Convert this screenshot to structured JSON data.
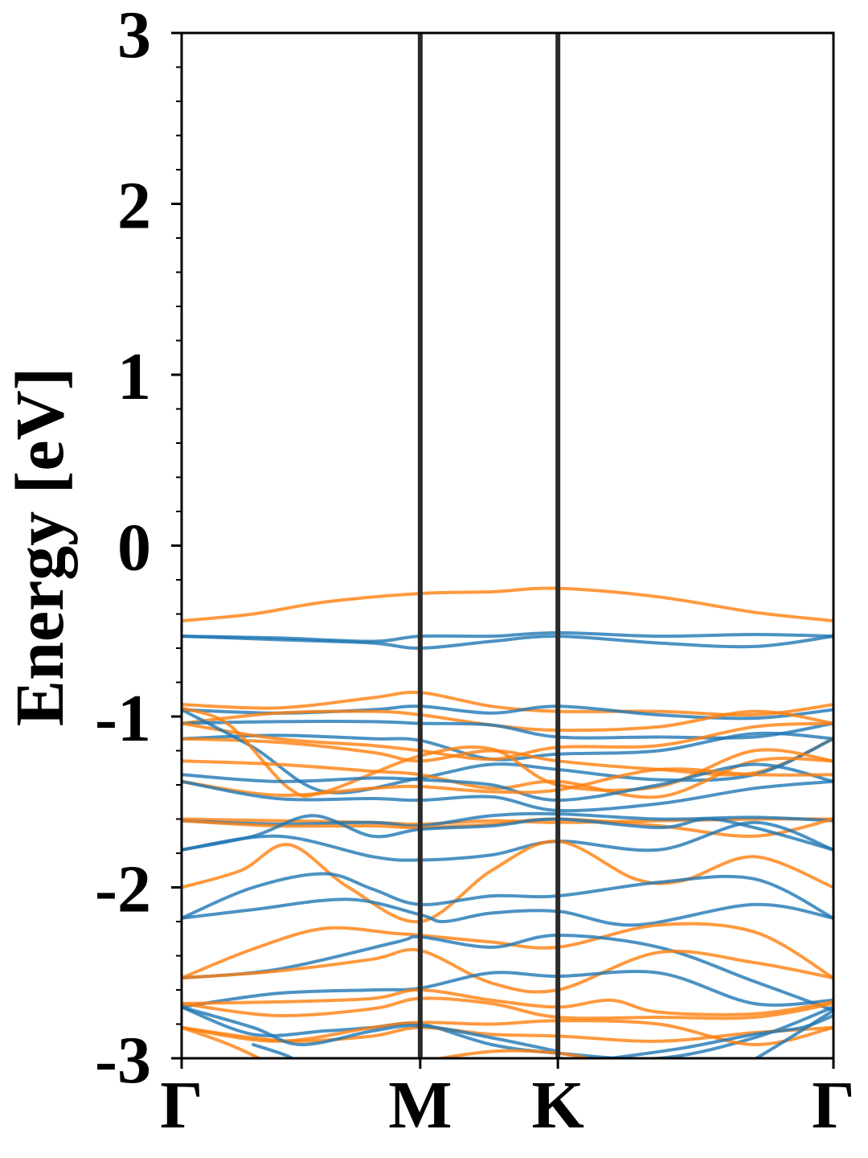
{
  "chart_data": {
    "type": "line",
    "title": "",
    "xlabel": "",
    "ylabel": "Energy [eV]",
    "ylim": [
      -3,
      3
    ],
    "yticks": [
      {
        "value": -3,
        "label": "-3"
      },
      {
        "value": -2,
        "label": "-2"
      },
      {
        "value": -1,
        "label": "-1"
      },
      {
        "value": 0,
        "label": "0"
      },
      {
        "value": 1,
        "label": "1"
      },
      {
        "value": 2,
        "label": "2"
      },
      {
        "value": 3,
        "label": "3"
      }
    ],
    "xlim": [
      0,
      2.732
    ],
    "xticks": [
      {
        "value": 0,
        "label": "Γ"
      },
      {
        "value": 1.0,
        "label": "M"
      },
      {
        "value": 1.577,
        "label": "K"
      },
      {
        "value": 2.732,
        "label": "Γ"
      }
    ],
    "grid": false,
    "legend": "none",
    "colors": {
      "blue": "#1f77b4",
      "orange": "#ff7f0e",
      "vline": "#2b2b2b"
    },
    "series": [
      {
        "color": "orange",
        "x": [
          0,
          0.3,
          0.6,
          1.0,
          1.3,
          1.577,
          2.0,
          2.4,
          2.732
        ],
        "y": [
          -0.44,
          -0.4,
          -0.33,
          -0.28,
          -0.27,
          -0.25,
          -0.3,
          -0.39,
          -0.44
        ]
      },
      {
        "color": "blue",
        "x": [
          0,
          0.4,
          0.8,
          1.0,
          1.3,
          1.577,
          2.0,
          2.4,
          2.732
        ],
        "y": [
          -0.53,
          -0.54,
          -0.56,
          -0.53,
          -0.53,
          -0.51,
          -0.53,
          -0.52,
          -0.53
        ]
      },
      {
        "color": "blue",
        "x": [
          0,
          0.4,
          0.8,
          1.0,
          1.3,
          1.577,
          2.0,
          2.4,
          2.732
        ],
        "y": [
          -0.53,
          -0.55,
          -0.57,
          -0.6,
          -0.56,
          -0.53,
          -0.57,
          -0.59,
          -0.53
        ]
      },
      {
        "color": "orange",
        "x": [
          0,
          0.4,
          0.8,
          1.0,
          1.3,
          1.577,
          2.0,
          2.4,
          2.732
        ],
        "y": [
          -0.93,
          -0.95,
          -0.89,
          -0.86,
          -0.94,
          -0.97,
          -0.97,
          -0.99,
          -0.93
        ]
      },
      {
        "color": "blue",
        "x": [
          0,
          0.4,
          0.8,
          1.0,
          1.3,
          1.577,
          2.0,
          2.4,
          2.732
        ],
        "y": [
          -0.96,
          -0.98,
          -0.96,
          -0.94,
          -0.98,
          -0.94,
          -0.99,
          -1.01,
          -0.96
        ]
      },
      {
        "color": "orange",
        "x": [
          0,
          0.4,
          0.8,
          1.0,
          1.3,
          1.577,
          2.0,
          2.4,
          2.732
        ],
        "y": [
          -1.04,
          -0.98,
          -0.97,
          -0.99,
          -1.05,
          -1.08,
          -1.06,
          -0.97,
          -1.04
        ]
      },
      {
        "color": "blue",
        "x": [
          0,
          0.4,
          0.8,
          1.0,
          1.3,
          1.577,
          2.0,
          2.4,
          2.732
        ],
        "y": [
          -1.04,
          -1.03,
          -1.03,
          -1.04,
          -1.05,
          -1.12,
          -1.12,
          -1.12,
          -1.04
        ]
      },
      {
        "color": "blue",
        "x": [
          0,
          0.4,
          0.8,
          1.0,
          1.3,
          1.577,
          2.0,
          2.4,
          2.732
        ],
        "y": [
          -1.13,
          -1.11,
          -1.13,
          -1.14,
          -1.25,
          -1.22,
          -1.2,
          -1.1,
          -1.13
        ]
      },
      {
        "color": "orange",
        "x": [
          0,
          0.4,
          0.8,
          1.0,
          1.3,
          1.577,
          2.0,
          2.4,
          2.732
        ],
        "y": [
          -1.04,
          -1.13,
          -1.17,
          -1.2,
          -1.25,
          -1.18,
          -1.17,
          -1.06,
          -1.04
        ]
      },
      {
        "color": "orange",
        "x": [
          0,
          0.4,
          0.8,
          1.0,
          1.3,
          1.577,
          2.0,
          2.4,
          2.732
        ],
        "y": [
          -1.13,
          -1.15,
          -1.21,
          -1.26,
          -1.2,
          -1.26,
          -1.31,
          -1.33,
          -1.13
        ]
      },
      {
        "color": "blue",
        "x": [
          0,
          0.3,
          0.6,
          1.0,
          1.3,
          1.577,
          2.0,
          2.4,
          2.732
        ],
        "y": [
          -0.96,
          -1.18,
          -1.44,
          -1.36,
          -1.28,
          -1.31,
          -1.37,
          -1.34,
          -1.13
        ]
      },
      {
        "color": "orange",
        "x": [
          0,
          0.2,
          0.45,
          0.6,
          1.0,
          1.3,
          1.577,
          2.0,
          2.4,
          2.732
        ],
        "y": [
          -0.95,
          -1.05,
          -1.42,
          -1.44,
          -1.23,
          -1.19,
          -1.4,
          -1.41,
          -1.2,
          -1.26
        ]
      },
      {
        "color": "orange",
        "x": [
          0,
          0.4,
          0.8,
          1.0,
          1.3,
          1.577,
          2.0,
          2.4,
          2.732
        ],
        "y": [
          -1.26,
          -1.28,
          -1.32,
          -1.34,
          -1.42,
          -1.38,
          -1.47,
          -1.26,
          -1.26
        ]
      },
      {
        "color": "blue",
        "x": [
          0,
          0.4,
          0.8,
          1.0,
          1.3,
          1.577,
          2.0,
          2.4,
          2.732
        ],
        "y": [
          -1.34,
          -1.38,
          -1.36,
          -1.37,
          -1.4,
          -1.49,
          -1.4,
          -1.28,
          -1.38
        ]
      },
      {
        "color": "orange",
        "x": [
          0,
          0.4,
          0.8,
          1.0,
          1.3,
          1.577,
          2.0,
          2.4,
          2.732
        ],
        "y": [
          -1.38,
          -1.46,
          -1.42,
          -1.41,
          -1.44,
          -1.43,
          -1.31,
          -1.34,
          -1.34
        ]
      },
      {
        "color": "blue",
        "x": [
          0,
          0.4,
          0.8,
          1.0,
          1.3,
          1.577,
          2.0,
          2.4,
          2.732
        ],
        "y": [
          -1.38,
          -1.48,
          -1.48,
          -1.49,
          -1.47,
          -1.55,
          -1.51,
          -1.42,
          -1.38
        ]
      },
      {
        "color": "orange",
        "x": [
          0,
          0.4,
          0.8,
          1.0,
          1.3,
          1.577,
          2.0,
          2.4,
          2.732
        ],
        "y": [
          -1.6,
          -1.61,
          -1.62,
          -1.63,
          -1.61,
          -1.62,
          -1.61,
          -1.6,
          -1.6
        ]
      },
      {
        "color": "blue",
        "x": [
          0,
          0.4,
          0.8,
          1.0,
          1.3,
          1.577,
          2.0,
          2.4,
          2.732
        ],
        "y": [
          -1.61,
          -1.63,
          -1.62,
          -1.64,
          -1.58,
          -1.57,
          -1.6,
          -1.59,
          -1.61
        ]
      },
      {
        "color": "orange",
        "x": [
          0,
          0.4,
          0.8,
          1.0,
          1.3,
          1.577,
          2.0,
          2.4,
          2.732
        ],
        "y": [
          -1.61,
          -1.64,
          -1.64,
          -1.65,
          -1.63,
          -1.6,
          -1.64,
          -1.7,
          -1.6
        ]
      },
      {
        "color": "blue",
        "x": [
          0,
          0.3,
          0.55,
          0.8,
          1.0,
          1.3,
          1.577,
          2.0,
          2.2,
          2.4,
          2.732
        ],
        "y": [
          -1.78,
          -1.7,
          -1.58,
          -1.7,
          -1.66,
          -1.64,
          -1.6,
          -1.65,
          -1.6,
          -1.65,
          -1.78
        ]
      },
      {
        "color": "blue",
        "x": [
          0,
          0.4,
          0.8,
          1.0,
          1.3,
          1.577,
          2.0,
          2.4,
          2.732
        ],
        "y": [
          -1.78,
          -1.7,
          -1.82,
          -1.84,
          -1.81,
          -1.73,
          -1.78,
          -1.62,
          -1.78
        ]
      },
      {
        "color": "orange",
        "x": [
          0,
          0.25,
          0.45,
          0.7,
          1.0,
          1.3,
          1.577,
          1.9,
          2.1,
          2.4,
          2.732
        ],
        "y": [
          -2.0,
          -1.9,
          -1.75,
          -2.0,
          -2.2,
          -1.9,
          -1.73,
          -1.95,
          -1.96,
          -1.82,
          -2.0
        ]
      },
      {
        "color": "blue",
        "x": [
          0,
          0.3,
          0.6,
          0.8,
          1.0,
          1.3,
          1.577,
          2.0,
          2.4,
          2.732
        ],
        "y": [
          -2.18,
          -2.0,
          -1.92,
          -2.01,
          -2.1,
          -2.05,
          -2.05,
          -1.97,
          -1.95,
          -2.18
        ]
      },
      {
        "color": "blue",
        "x": [
          0,
          0.3,
          0.7,
          1.0,
          1.1,
          1.3,
          1.577,
          1.9,
          2.4,
          2.732
        ],
        "y": [
          -2.18,
          -2.13,
          -2.07,
          -2.16,
          -2.2,
          -2.15,
          -2.14,
          -2.22,
          -2.1,
          -2.18
        ]
      },
      {
        "color": "orange",
        "x": [
          0,
          0.3,
          0.6,
          0.9,
          1.0,
          1.3,
          1.577,
          2.0,
          2.4,
          2.732
        ],
        "y": [
          -2.53,
          -2.36,
          -2.24,
          -2.27,
          -2.28,
          -2.32,
          -2.35,
          -2.22,
          -2.26,
          -2.53
        ]
      },
      {
        "color": "blue",
        "x": [
          0,
          0.4,
          0.9,
          1.0,
          1.3,
          1.577,
          2.0,
          2.4,
          2.732
        ],
        "y": [
          -2.53,
          -2.48,
          -2.32,
          -2.29,
          -2.35,
          -2.28,
          -2.35,
          -2.55,
          -2.72
        ]
      },
      {
        "color": "orange",
        "x": [
          0,
          0.4,
          0.8,
          1.0,
          1.3,
          1.577,
          2.0,
          2.4,
          2.732
        ],
        "y": [
          -2.53,
          -2.49,
          -2.42,
          -2.37,
          -2.56,
          -2.6,
          -2.38,
          -2.44,
          -2.53
        ]
      },
      {
        "color": "blue",
        "x": [
          0,
          0.4,
          0.8,
          1.0,
          1.3,
          1.577,
          2.0,
          2.4,
          2.732
        ],
        "y": [
          -2.7,
          -2.62,
          -2.6,
          -2.59,
          -2.5,
          -2.52,
          -2.5,
          -2.68,
          -2.66
        ]
      },
      {
        "color": "orange",
        "x": [
          0,
          0.4,
          0.8,
          1.0,
          1.3,
          1.577,
          1.8,
          2.0,
          2.4,
          2.732
        ],
        "y": [
          -2.68,
          -2.67,
          -2.65,
          -2.6,
          -2.66,
          -2.7,
          -2.66,
          -2.73,
          -2.74,
          -2.67
        ]
      },
      {
        "color": "orange",
        "x": [
          0,
          0.4,
          0.8,
          1.0,
          1.3,
          1.577,
          2.0,
          2.4,
          2.732
        ],
        "y": [
          -2.68,
          -2.75,
          -2.71,
          -2.65,
          -2.68,
          -2.76,
          -2.76,
          -2.76,
          -2.68
        ]
      },
      {
        "color": "blue",
        "x": [
          0,
          0.3,
          0.6,
          0.8,
          1.0,
          1.3,
          1.577,
          2.0,
          2.4,
          2.732
        ],
        "y": [
          -2.7,
          -2.86,
          -2.84,
          -2.82,
          -2.8,
          -2.92,
          -2.97,
          -3.0,
          -2.88,
          -2.7
        ]
      },
      {
        "color": "orange",
        "x": [
          0,
          0.4,
          0.8,
          1.0,
          1.3,
          1.577,
          2.0,
          2.4,
          2.732
        ],
        "y": [
          -2.82,
          -2.9,
          -2.82,
          -2.79,
          -2.8,
          -2.78,
          -2.8,
          -2.92,
          -2.82
        ]
      },
      {
        "color": "orange",
        "x": [
          0,
          0.3,
          0.5,
          0.8,
          1.0,
          1.3,
          1.577,
          2.0,
          2.4,
          2.732
        ],
        "y": [
          -2.82,
          -2.88,
          -2.9,
          -2.87,
          -2.82,
          -2.86,
          -2.87,
          -2.9,
          -2.85,
          -2.82
        ]
      },
      {
        "color": "blue",
        "x": [
          0,
          0.3,
          0.5,
          0.8,
          1.0,
          1.3,
          1.577
        ],
        "y": [
          -2.7,
          -2.82,
          -2.92,
          -2.84,
          -2.81,
          -2.88,
          -2.96
        ]
      },
      {
        "color": "orange",
        "x": [
          0,
          0.2,
          0.4
        ],
        "y": [
          -2.82,
          -2.92,
          -3.05
        ]
      },
      {
        "color": "orange",
        "x": [
          1.0,
          1.3,
          1.577,
          1.8
        ],
        "y": [
          -3.02,
          -2.96,
          -2.97,
          -3.03
        ]
      },
      {
        "color": "blue",
        "x": [
          0.3,
          0.45,
          0.5
        ],
        "y": [
          -2.92,
          -2.99,
          -3.05
        ]
      },
      {
        "color": "blue",
        "x": [
          2.35,
          2.55,
          2.732
        ],
        "y": [
          -3.05,
          -2.88,
          -2.72
        ]
      },
      {
        "color": "blue",
        "x": [
          1.8,
          2.1,
          2.4,
          2.6,
          2.732
        ],
        "y": [
          -3.0,
          -2.94,
          -2.86,
          -2.82,
          -2.75
        ]
      }
    ]
  }
}
